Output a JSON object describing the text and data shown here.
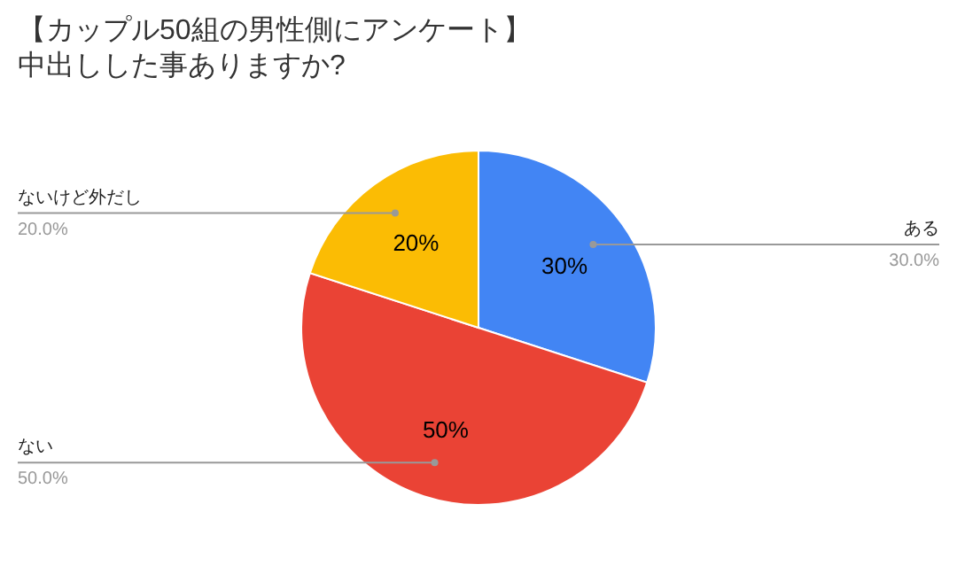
{
  "chart_data": {
    "type": "pie",
    "title": "【カップル50組の男性側にアンケート】",
    "subtitle": "中出しした事ありますか?",
    "categories": [
      "ある",
      "ない",
      "ないけど外だし"
    ],
    "values": [
      30,
      50,
      20
    ],
    "colors": [
      "#4285f4",
      "#ea4335",
      "#fbbc04"
    ],
    "value_labels": [
      "30%",
      "50%",
      "20%"
    ],
    "annotations": [
      "30.0%",
      "50.0%",
      "20.0%"
    ]
  }
}
